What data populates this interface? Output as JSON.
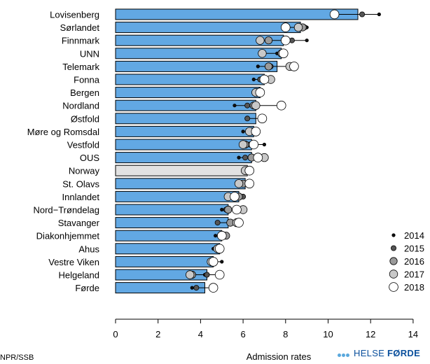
{
  "chart_data": {
    "type": "bar",
    "orientation": "horizontal",
    "xlabel": "Admission rates",
    "xlim": [
      0,
      14
    ],
    "xticks": [
      0,
      2,
      4,
      6,
      8,
      10,
      12,
      14
    ],
    "bar_color": "#62a8e3",
    "highlight_color": "#e2e2e2",
    "highlight_category": "Norway",
    "categories": [
      "Lovisenberg",
      "Sørlandet",
      "Finnmark",
      "UNN",
      "Telemark",
      "Fonna",
      "Bergen",
      "Nordland",
      "Østfold",
      "Møre og Romsdal",
      "Vestfold",
      "OUS",
      "Norway",
      "St. Olavs",
      "Innlandet",
      "Nord−Trøndelag",
      "Stavanger",
      "Diakonhjemmet",
      "Ahus",
      "Vestre Viken",
      "Helgeland",
      "Førde"
    ],
    "values": [
      11.4,
      8.7,
      7.9,
      7.8,
      7.6,
      7.0,
      6.8,
      6.6,
      6.6,
      6.5,
      6.4,
      6.4,
      6.2,
      6.1,
      5.8,
      5.3,
      5.3,
      5.0,
      4.9,
      4.6,
      4.3,
      4.2
    ],
    "series": [
      {
        "name": "2014",
        "color": "#111111",
        "size": 2.2,
        "values": [
          12.4,
          9.0,
          9.0,
          7.6,
          6.7,
          6.5,
          6.5,
          5.6,
          6.2,
          6.0,
          7.0,
          5.8,
          6.1,
          5.8,
          6.0,
          5.0,
          5.3,
          4.7,
          4.6,
          5.0,
          4.2,
          3.6
        ]
      },
      {
        "name": "2015",
        "color": "#555555",
        "size": 3.6,
        "values": [
          11.6,
          8.9,
          8.3,
          7.8,
          7.3,
          6.8,
          6.7,
          6.2,
          6.2,
          6.6,
          6.3,
          6.1,
          6.2,
          5.9,
          6.0,
          5.2,
          4.8,
          4.9,
          4.8,
          4.6,
          4.3,
          3.8
        ]
      },
      {
        "name": "2016",
        "color": "#9a9a9a",
        "size": 5.2,
        "values": [
          10.3,
          8.8,
          7.2,
          7.8,
          7.2,
          7.0,
          6.8,
          6.5,
          6.9,
          6.4,
          6.1,
          6.4,
          6.2,
          6.0,
          5.8,
          5.3,
          5.4,
          5.2,
          4.8,
          4.6,
          3.6,
          4.6
        ]
      },
      {
        "name": "2017",
        "color": "#c8c8c8",
        "size": 5.8,
        "values": [
          10.3,
          8.6,
          6.8,
          6.9,
          8.2,
          7.3,
          6.6,
          6.6,
          6.9,
          6.3,
          6.0,
          7.0,
          6.1,
          5.8,
          5.3,
          6.0,
          5.7,
          5.0,
          4.8,
          4.5,
          3.5,
          4.6
        ]
      },
      {
        "name": "2018",
        "color": "#ffffff",
        "size": 6.4,
        "values": [
          10.3,
          8.0,
          8.0,
          7.9,
          8.4,
          7.0,
          6.8,
          7.8,
          6.9,
          6.6,
          6.5,
          6.7,
          6.3,
          6.3,
          5.6,
          5.7,
          5.8,
          5.0,
          4.9,
          4.6,
          4.9,
          4.6
        ]
      }
    ]
  },
  "footer_note": "NPR/SSB",
  "logo": {
    "prefix": "HELSE ",
    "suffix": "FØRDE"
  }
}
